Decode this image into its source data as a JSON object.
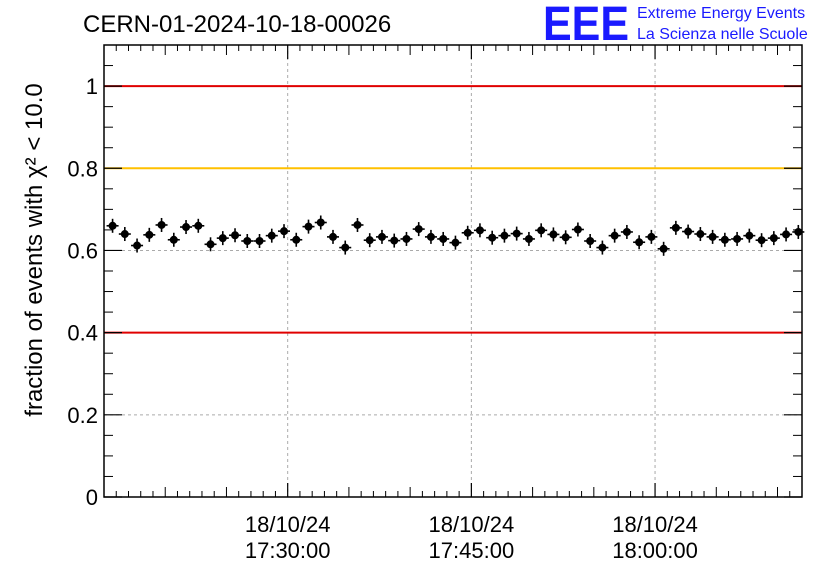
{
  "header": {
    "title": "CERN-01-2024-10-18-00026",
    "logo_text": "EEE",
    "logo_line1": "Extreme Energy Events",
    "logo_line2": "La Scienza nelle Scuole",
    "logo_color": "#1a1aff"
  },
  "chart_data": {
    "type": "scatter",
    "title": "CERN-01-2024-10-18-00026",
    "ylabel": "fraction of events with χ² < 10.0",
    "xlabel": "",
    "ylim": [
      0,
      1.1
    ],
    "xlim": [
      "2024-10-18 17:15:00",
      "2024-10-18 18:12:00"
    ],
    "grid": true,
    "x_ticks": [
      {
        "date": "18/10/24",
        "time": "17:30:00"
      },
      {
        "date": "18/10/24",
        "time": "17:45:00"
      },
      {
        "date": "18/10/24",
        "time": "18:00:00"
      }
    ],
    "y_ticks": [
      "0",
      "0.2",
      "0.4",
      "0.6",
      "0.8",
      "1"
    ],
    "reference_lines": [
      {
        "y": 1.0,
        "color": "#e00000"
      },
      {
        "y": 0.8,
        "color": "#ffc000"
      },
      {
        "y": 0.4,
        "color": "#e00000"
      }
    ],
    "series": [
      {
        "color": "#000000",
        "x": [
          "17:15:42",
          "17:16:42",
          "17:17:42",
          "17:18:42",
          "17:19:42",
          "17:20:42",
          "17:21:42",
          "17:22:42",
          "17:23:42",
          "17:24:42",
          "17:25:42",
          "17:26:42",
          "17:27:42",
          "17:28:42",
          "17:29:42",
          "17:30:42",
          "17:31:42",
          "17:32:42",
          "17:33:42",
          "17:34:42",
          "17:35:42",
          "17:36:42",
          "17:37:42",
          "17:38:42",
          "17:39:42",
          "17:40:42",
          "17:41:42",
          "17:42:42",
          "17:43:42",
          "17:44:42",
          "17:45:42",
          "17:46:42",
          "17:47:42",
          "17:48:42",
          "17:49:42",
          "17:50:42",
          "17:51:42",
          "17:52:42",
          "17:53:42",
          "17:54:42",
          "17:55:42",
          "17:56:42",
          "17:57:42",
          "17:58:42",
          "17:59:42",
          "18:00:42",
          "18:01:42",
          "18:02:42",
          "18:03:42",
          "18:04:42",
          "18:05:42",
          "18:06:42",
          "18:07:42",
          "18:08:42",
          "18:09:42",
          "18:10:42",
          "18:11:42"
        ],
        "y": [
          0.66,
          0.64,
          0.612,
          0.638,
          0.662,
          0.626,
          0.657,
          0.66,
          0.615,
          0.63,
          0.637,
          0.623,
          0.623,
          0.636,
          0.647,
          0.626,
          0.658,
          0.668,
          0.633,
          0.607,
          0.662,
          0.625,
          0.633,
          0.624,
          0.628,
          0.652,
          0.633,
          0.628,
          0.619,
          0.643,
          0.649,
          0.631,
          0.636,
          0.641,
          0.628,
          0.649,
          0.639,
          0.632,
          0.651,
          0.623,
          0.607,
          0.636,
          0.645,
          0.62,
          0.633,
          0.604,
          0.655,
          0.646,
          0.64,
          0.633,
          0.626,
          0.628,
          0.636,
          0.625,
          0.63,
          0.639,
          0.645
        ]
      }
    ]
  }
}
